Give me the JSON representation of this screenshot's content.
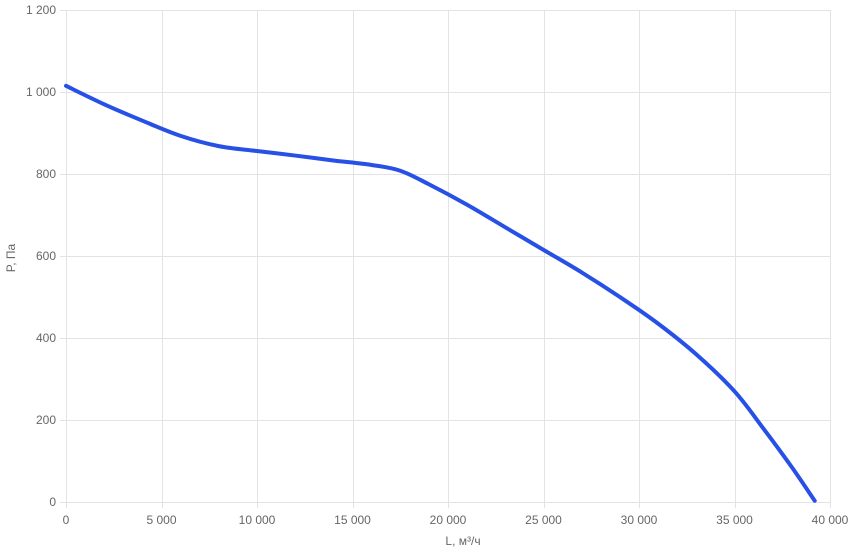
{
  "chart_data": {
    "type": "line",
    "title": "",
    "xlabel": "L, м³/ч",
    "ylabel": "P, Па",
    "xlim": [
      0,
      40000
    ],
    "ylim": [
      0,
      1200
    ],
    "x_ticks": [
      0,
      5000,
      10000,
      15000,
      20000,
      25000,
      30000,
      35000,
      40000
    ],
    "y_ticks": [
      0,
      200,
      400,
      600,
      800,
      1000,
      1200
    ],
    "x_tick_labels": [
      "0",
      "5 000",
      "10 000",
      "15 000",
      "20 000",
      "25 000",
      "30 000",
      "35 000",
      "40 000"
    ],
    "y_tick_labels": [
      "0",
      "200",
      "400",
      "600",
      "800",
      "1 000",
      "1 200"
    ],
    "grid": true,
    "legend": "none",
    "series": [
      {
        "color": "#2650e6",
        "x": [
          0,
          2000,
          4000,
          6000,
          8000,
          10000,
          12000,
          14000,
          16000,
          17500,
          19000,
          21000,
          23000,
          25000,
          27000,
          29000,
          31000,
          33000,
          35000,
          36500,
          38000,
          39200
        ],
        "y": [
          1015,
          970,
          930,
          893,
          868,
          856,
          845,
          833,
          822,
          808,
          775,
          725,
          670,
          615,
          560,
          500,
          435,
          360,
          270,
          180,
          85,
          3
        ]
      }
    ]
  }
}
